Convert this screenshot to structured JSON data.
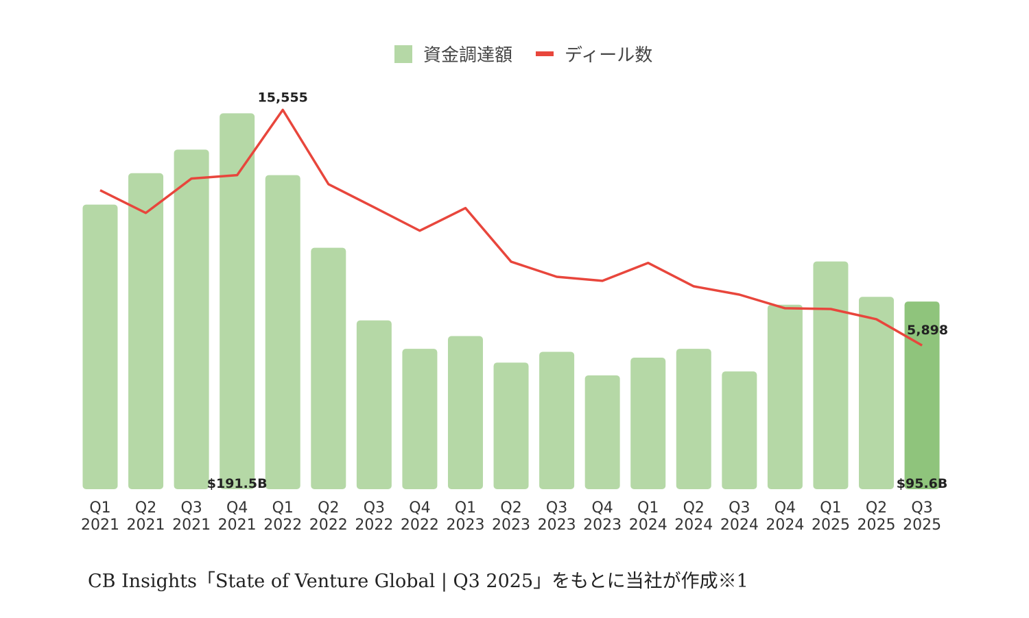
{
  "chart_data": {
    "type": "bar",
    "legend": {
      "position": "top",
      "bar_label": "資金調達額",
      "line_label": "ディール数"
    },
    "categories": [
      [
        "Q1",
        "2021"
      ],
      [
        "Q2",
        "2021"
      ],
      [
        "Q3",
        "2021"
      ],
      [
        "Q4",
        "2021"
      ],
      [
        "Q1",
        "2022"
      ],
      [
        "Q2",
        "2022"
      ],
      [
        "Q3",
        "2022"
      ],
      [
        "Q4",
        "2022"
      ],
      [
        "Q1",
        "2023"
      ],
      [
        "Q2",
        "2023"
      ],
      [
        "Q3",
        "2023"
      ],
      [
        "Q4",
        "2023"
      ],
      [
        "Q1",
        "2024"
      ],
      [
        "Q2",
        "2024"
      ],
      [
        "Q3",
        "2024"
      ],
      [
        "Q4",
        "2024"
      ],
      [
        "Q1",
        "2025"
      ],
      [
        "Q2",
        "2025"
      ],
      [
        "Q3",
        "2025"
      ]
    ],
    "series": [
      {
        "name": "資金調達額",
        "type": "bar",
        "unit": "$B",
        "ylim": [
          0,
          200
        ],
        "values": [
          145,
          161,
          173,
          191.5,
          160,
          123,
          86,
          71.5,
          78,
          64.5,
          70,
          58,
          67,
          71.5,
          60,
          94,
          116,
          98,
          95.6
        ]
      },
      {
        "name": "ディール数",
        "type": "line",
        "ylim": [
          0,
          16100
        ],
        "values": [
          12260,
          11330,
          12740,
          12880,
          15555,
          12510,
          11560,
          10600,
          11530,
          9330,
          8710,
          8545,
          9280,
          8320,
          7980,
          7420,
          7390,
          6970,
          5898
        ]
      }
    ],
    "data_labels": [
      {
        "series": 0,
        "index": 3,
        "text": "$191.5B"
      },
      {
        "series": 0,
        "index": 18,
        "text": "$95.6B"
      },
      {
        "series": 1,
        "index": 4,
        "text": "15,555"
      },
      {
        "series": 1,
        "index": 18,
        "text": "5,898"
      }
    ],
    "grid": false,
    "colors": {
      "bar": "#b5d8a6",
      "bar_highlight": "#8fc47c",
      "line": "#e8463c"
    },
    "highlight_index": 18
  },
  "source": "CB Insights「State of Venture Global | Q3 2025」をもとに当社が作成※1"
}
